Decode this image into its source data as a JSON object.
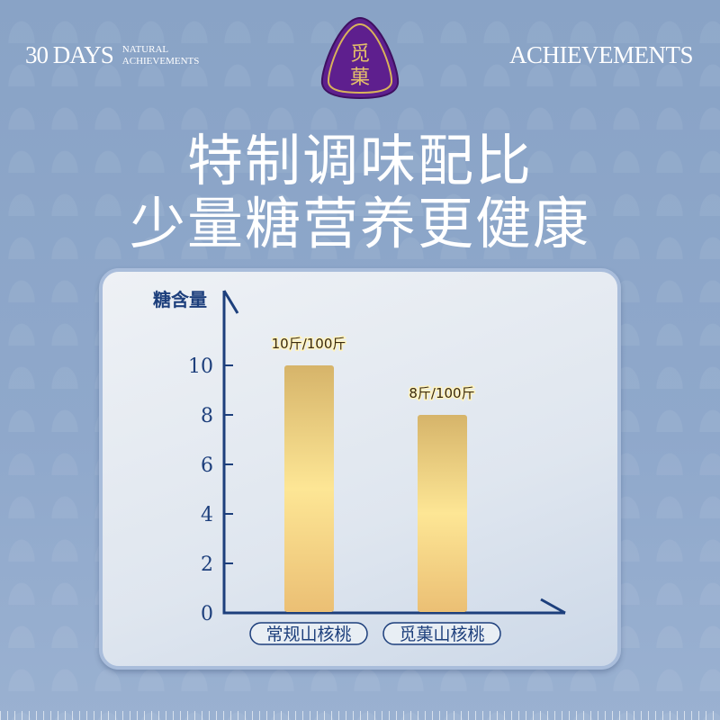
{
  "header": {
    "left_big": "30 DAYS",
    "left_small_1": "NATURAL",
    "left_small_2": "ACHIEVEMENTS",
    "right": "ACHIEVEMENTS",
    "logo_text": "觅菓"
  },
  "headline": {
    "line1": "特制调味配比",
    "line2": "少量糖营养更健康"
  },
  "colors": {
    "axis": "#1d3f7c",
    "bar_top": "#d6b46a",
    "bar_mid": "#fde695",
    "logo": "#5e1f8e",
    "logo_rim": "#d9b35a"
  },
  "chart_data": {
    "type": "bar",
    "ylabel": "糖含量",
    "ylim": [
      0,
      10
    ],
    "yticks": [
      "0",
      "2",
      "4",
      "6",
      "8",
      "10"
    ],
    "categories": [
      "常规山核桃",
      "觅菓山核桃"
    ],
    "values": [
      10,
      8
    ],
    "data_labels": [
      "10斤/100斤",
      "8斤/100斤"
    ],
    "grid": false
  }
}
